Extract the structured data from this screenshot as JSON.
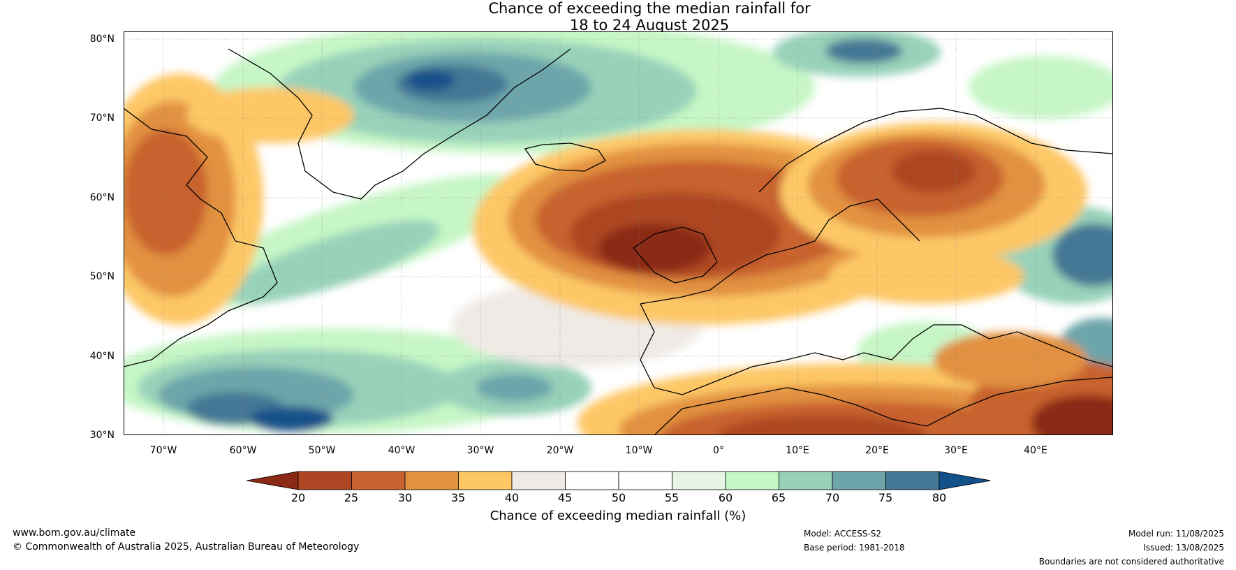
{
  "title": {
    "line1": "Chance of exceeding the median rainfall for",
    "line2": "18 to 24 August 2025"
  },
  "map": {
    "lat_labels": [
      "80°N",
      "70°N",
      "60°N",
      "50°N",
      "40°N",
      "30°N"
    ],
    "lon_labels": [
      "70°W",
      "60°W",
      "50°W",
      "40°W",
      "30°W",
      "20°W",
      "10°W",
      "0°",
      "10°E",
      "20°E",
      "30°E",
      "40°E"
    ]
  },
  "colorbar": {
    "ticks": [
      "20",
      "25",
      "30",
      "35",
      "40",
      "45",
      "50",
      "55",
      "60",
      "65",
      "70",
      "75",
      "80"
    ],
    "colors": [
      "#8b2a14",
      "#ad4622",
      "#c8622e",
      "#e2913f",
      "#fdc766",
      "#efeae5",
      "#ffffff",
      "#ffffff",
      "#e7f6e4",
      "#c6f6c6",
      "#97d1b9",
      "#6da5aa",
      "#447894",
      "#13518a"
    ],
    "label": "Chance of exceeding median rainfall (%)"
  },
  "footer": {
    "website": "www.bom.gov.au/climate",
    "copyright": "© Commonwealth of Australia 2025, Australian Bureau of Meteorology",
    "model": "Model: ACCESS-S2",
    "base_period": "Base period: 1981-2018",
    "model_run": "Model run: 11/08/2025",
    "issued": "Issued: 13/08/2025",
    "disclaimer": "Boundaries are not considered authoritative"
  }
}
